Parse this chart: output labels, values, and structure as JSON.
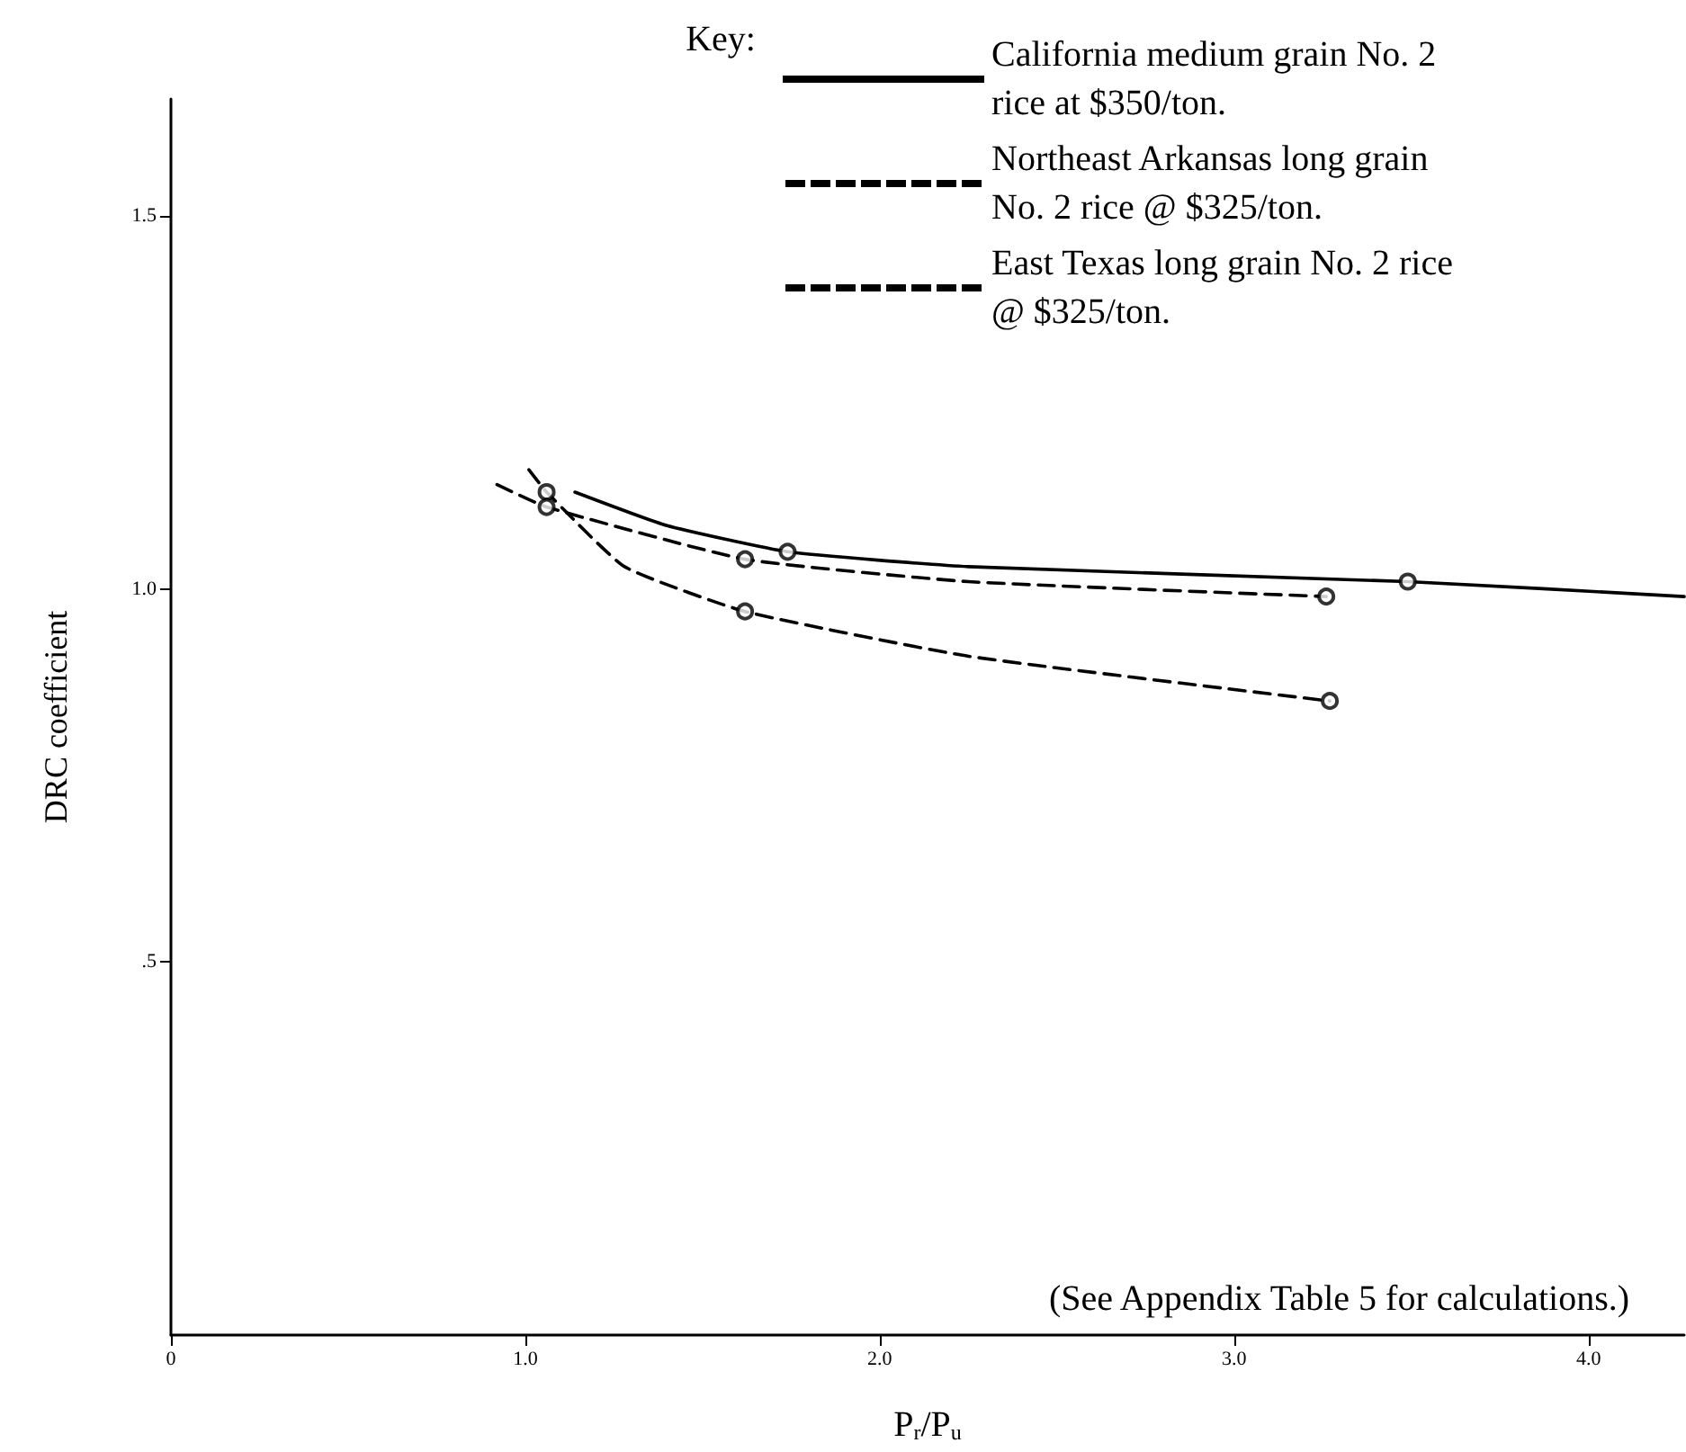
{
  "chart_data": {
    "type": "line",
    "xlabel": "P$_{r}$/P$_{u}$",
    "ylabel": "DRC coefficient",
    "legend_title": "Key:",
    "annotations": [
      "(See Appendix Table 5 for calculations.)"
    ],
    "xlim": [
      0,
      4.27
    ],
    "ylim": [
      0,
      1.657
    ],
    "xticks": [
      {
        "value": 0,
        "label": "0"
      },
      {
        "value": 1,
        "label": "1.0"
      },
      {
        "value": 2,
        "label": "2.0"
      },
      {
        "value": 3,
        "label": "3.0"
      },
      {
        "value": 4,
        "label": "4.0"
      }
    ],
    "yticks": [
      {
        "value": 0.5,
        "label": ".5"
      },
      {
        "value": 1,
        "label": "1.0"
      },
      {
        "value": 1.5,
        "label": "1.5"
      }
    ],
    "grid": false,
    "legend": "top right",
    "series": [
      {
        "name": "California medium grain No. 2 rice at $350/ton.",
        "type": "line",
        "color": "#000000",
        "line_style": "solid",
        "marker": "none",
        "x": [
          1.14,
          1.4,
          1.74,
          2.25,
          3.49,
          4.27
        ],
        "values": [
          1.13,
          1.085,
          1.05,
          1.03,
          1.01,
          0.99
        ]
      },
      {
        "name": "Northeast Arkansas long grain No. 2 rice @ $325/ton.",
        "type": "line",
        "color": "#000000",
        "line_style": "dashed",
        "marker": "none",
        "x": [
          0.92,
          1.06,
          1.62,
          2.25,
          3.26
        ],
        "values": [
          1.14,
          1.11,
          1.04,
          1.01,
          0.99
        ]
      },
      {
        "name": "East Texas long grain No. 2 rice @ $325/ton.",
        "type": "line",
        "color": "#000000",
        "line_style": "dashed",
        "marker": "none",
        "x": [
          1.01,
          1.06,
          1.28,
          1.62,
          2.25,
          3.27
        ],
        "values": [
          1.16,
          1.13,
          1.03,
          0.97,
          0.91,
          0.85
        ]
      },
      {
        "type": "scatter",
        "color": "#000000",
        "marker": "circle",
        "x": [
          1.06,
          1.06,
          1.62,
          1.74,
          1.62,
          3.26,
          3.27,
          3.49
        ],
        "values": [
          1.13,
          1.11,
          1.04,
          1.05,
          0.97,
          0.99,
          0.85,
          1.01
        ]
      }
    ]
  }
}
